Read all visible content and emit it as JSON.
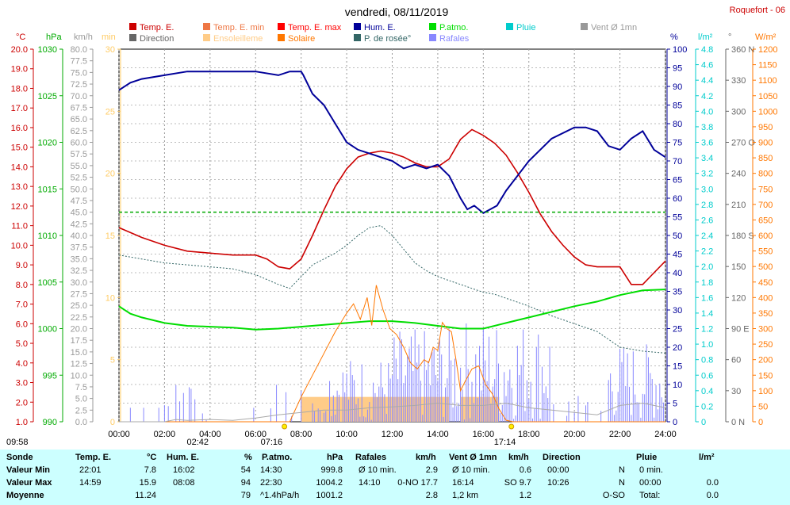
{
  "chart_data": {
    "type": "line",
    "title": "vendredi, 08/11/2019",
    "station": "Roquefort - 06",
    "x_ticks": [
      "00:00",
      "02:00",
      "04:00",
      "06:00",
      "08:00",
      "10:00",
      "12:00",
      "14:00",
      "16:00",
      "18:00",
      "20:00",
      "22:00",
      "24:00"
    ],
    "legend": [
      {
        "label": "Temp. E.",
        "color": "#cc0000"
      },
      {
        "label": "Temp. E. min",
        "color": "#ee7744"
      },
      {
        "label": "Temp. E. max",
        "color": "#ff0000"
      },
      {
        "label": "Hum. E.",
        "color": "#000099"
      },
      {
        "label": "P.atmo.",
        "color": "#00dd00"
      },
      {
        "label": "Pluie",
        "color": "#00cccc"
      },
      {
        "label": "Vent Ø 1mn",
        "color": "#999999"
      },
      {
        "label": "Direction",
        "color": "#666666"
      },
      {
        "label": "Ensoleilleme",
        "color": "#ffcc88"
      },
      {
        "label": "Solaire",
        "color": "#ff7700"
      },
      {
        "label": "P. de rosée°",
        "color": "#336666"
      },
      {
        "label": "Rafales",
        "color": "#8888ff"
      }
    ],
    "axes": {
      "temp": {
        "unit": "°C",
        "ticks": [
          "20.0",
          "19.0",
          "18.0",
          "17.0",
          "16.0",
          "15.0",
          "14.0",
          "13.0",
          "12.0",
          "11.0",
          "10.0",
          "9.0",
          "8.0",
          "7.0",
          "6.0",
          "5.0",
          "4.0",
          "3.0",
          "2.0",
          "1.0"
        ],
        "range": [
          1,
          20
        ],
        "color": "#cc0000"
      },
      "press": {
        "unit": "hPa",
        "ticks": [
          "1030",
          "1025",
          "1020",
          "1015",
          "1010",
          "1005",
          "1000",
          "995",
          "990"
        ],
        "range": [
          990,
          1030
        ],
        "color": "#00aa00"
      },
      "wind": {
        "unit": "km/h",
        "ticks": [
          "80.0",
          "77.5",
          "75.0",
          "72.5",
          "70.0",
          "67.5",
          "65.0",
          "62.5",
          "60.0",
          "57.5",
          "55.0",
          "52.5",
          "50.0",
          "47.5",
          "45.0",
          "42.5",
          "40.0",
          "37.5",
          "35.0",
          "32.5",
          "30.0",
          "27.5",
          "25.0",
          "22.5",
          "20.0",
          "17.5",
          "15.0",
          "12.5",
          "10.0",
          "7.5",
          "5.0",
          "2.5",
          "0.0"
        ],
        "range": [
          0,
          80
        ],
        "color": "#999999"
      },
      "sun": {
        "unit": "min",
        "ticks": [
          "30",
          "25",
          "20",
          "15",
          "10",
          "5",
          "0"
        ],
        "range": [
          0,
          30
        ],
        "color": "#ffcc66"
      },
      "hum": {
        "unit": "%",
        "ticks": [
          "100",
          "95",
          "90",
          "85",
          "80",
          "75",
          "70",
          "65",
          "60",
          "55",
          "50",
          "45",
          "40",
          "35",
          "30",
          "25",
          "20",
          "15",
          "10",
          "5",
          "0"
        ],
        "range": [
          0,
          100
        ],
        "color": "#000099"
      },
      "rain": {
        "unit": "l/m²",
        "ticks": [
          "4.8",
          "4.6",
          "4.4",
          "4.2",
          "4.0",
          "3.8",
          "3.6",
          "3.4",
          "3.2",
          "3.0",
          "2.8",
          "2.6",
          "2.4",
          "2.2",
          "2.0",
          "1.8",
          "1.6",
          "1.4",
          "1.2",
          "1.0",
          "0.8",
          "0.6",
          "0.4",
          "0.2",
          "0"
        ],
        "range": [
          0,
          5
        ],
        "color": "#00cccc"
      },
      "dir": {
        "unit": "°",
        "ticks": [
          "360 N",
          "330",
          "300",
          "270 O",
          "240",
          "210",
          "180 S",
          "150",
          "120",
          "90 E",
          "60",
          "30",
          "0 N"
        ],
        "range": [
          0,
          360
        ],
        "color": "#666666"
      },
      "solar": {
        "unit": "W/m²",
        "ticks": [
          "1200",
          "1150",
          "1100",
          "1050",
          "1000",
          "950",
          "900",
          "850",
          "800",
          "750",
          "700",
          "650",
          "600",
          "550",
          "500",
          "450",
          "400",
          "350",
          "300",
          "250",
          "200",
          "150",
          "100",
          "50",
          "0"
        ],
        "range": [
          0,
          1200
        ],
        "color": "#ff7700"
      }
    },
    "series": [
      {
        "name": "Temp. E.",
        "axis": "temp",
        "x": [
          0,
          1,
          2,
          3,
          4,
          5,
          6,
          6.5,
          7,
          7.5,
          8,
          8.5,
          9,
          9.5,
          10,
          10.5,
          11,
          11.5,
          12,
          12.5,
          13,
          13.5,
          14,
          14.5,
          15,
          15.5,
          16,
          16.5,
          17,
          17.5,
          18,
          18.5,
          19,
          19.5,
          20,
          20.5,
          21,
          21.5,
          22,
          22.5,
          23,
          23.5,
          24
        ],
        "y": [
          10.9,
          10.4,
          10.0,
          9.7,
          9.6,
          9.5,
          9.5,
          9.3,
          8.9,
          8.8,
          9.3,
          10.5,
          11.8,
          13.0,
          13.9,
          14.5,
          14.7,
          14.8,
          14.7,
          14.5,
          14.2,
          14.0,
          14.0,
          14.4,
          15.4,
          15.9,
          15.6,
          15.2,
          14.6,
          13.7,
          12.7,
          11.6,
          10.7,
          10.0,
          9.4,
          9.0,
          8.9,
          8.9,
          8.9,
          8.0,
          8.0,
          8.6,
          9.2
        ]
      },
      {
        "name": "P. de rosée°",
        "axis": "temp",
        "x": [
          0,
          1,
          2,
          3,
          4,
          5,
          6,
          7,
          7.5,
          8,
          8.5,
          9,
          9.5,
          10,
          10.5,
          11,
          11.5,
          12,
          12.5,
          13,
          13.5,
          14,
          14.5,
          15,
          15.5,
          16,
          16.5,
          17,
          17.5,
          18,
          19,
          20,
          21,
          22,
          23,
          24
        ],
        "y": [
          9.5,
          9.3,
          9.1,
          9.0,
          8.9,
          8.8,
          8.5,
          8.0,
          7.8,
          8.4,
          9.0,
          9.3,
          9.6,
          10.0,
          10.5,
          10.9,
          11.0,
          10.5,
          9.8,
          9.1,
          8.7,
          8.4,
          8.2,
          8.0,
          7.8,
          7.6,
          7.5,
          7.3,
          7.1,
          6.9,
          6.4,
          6.0,
          5.6,
          4.8,
          4.6,
          4.5
        ]
      },
      {
        "name": "Hum. E.",
        "axis": "hum",
        "x": [
          0,
          0.5,
          1,
          2,
          3,
          4,
          5,
          6,
          7,
          7.5,
          8,
          8.1,
          8.5,
          9,
          9.5,
          10,
          10.5,
          11,
          11.5,
          12,
          12.5,
          13,
          13.5,
          14,
          14.5,
          15,
          15.3,
          15.6,
          16,
          16.3,
          16.6,
          17,
          17.5,
          18,
          19,
          20,
          20.5,
          21,
          21.5,
          22,
          22.5,
          23,
          23.5,
          24
        ],
        "y": [
          89,
          91,
          92,
          93,
          94,
          94,
          94,
          94,
          93,
          94,
          94,
          93,
          88,
          85,
          80,
          75,
          73,
          72,
          71,
          70,
          68,
          69,
          68,
          69,
          66,
          60,
          57,
          58,
          56,
          57,
          58,
          62,
          66,
          70,
          76,
          79,
          79,
          78,
          74,
          73,
          76,
          78,
          73,
          71
        ]
      },
      {
        "name": "P.atmo.",
        "axis": "press",
        "x": [
          0,
          0.5,
          1,
          2,
          3,
          4,
          5,
          6,
          7,
          8,
          9,
          10,
          11,
          12,
          13,
          14,
          15,
          16,
          17,
          18,
          19,
          20,
          21,
          22,
          23,
          24
        ],
        "y": [
          1002.4,
          1001.6,
          1001.2,
          1000.6,
          1000.3,
          1000.2,
          1000.1,
          999.9,
          1000.0,
          1000.2,
          1000.4,
          1000.6,
          1000.8,
          1000.8,
          1000.6,
          1000.3,
          1000.0,
          1000.0,
          1000.6,
          1001.2,
          1001.8,
          1002.4,
          1002.9,
          1003.6,
          1004.1,
          1004.2
        ]
      },
      {
        "name": "Solaire",
        "axis": "solar",
        "x": [
          0,
          7.5,
          8,
          8.5,
          9,
          9.5,
          10,
          10.3,
          10.6,
          10.9,
          11.1,
          11.3,
          11.6,
          11.9,
          12.2,
          12.5,
          12.8,
          13.1,
          13.4,
          13.6,
          13.8,
          14.0,
          14.2,
          14.4,
          14.6,
          14.8,
          15.0,
          15.2,
          15.5,
          15.8,
          16.1,
          16.4,
          16.7,
          17.0,
          17.3,
          24
        ],
        "y": [
          0,
          0,
          80,
          150,
          220,
          290,
          350,
          380,
          330,
          400,
          310,
          440,
          360,
          300,
          280,
          240,
          190,
          170,
          200,
          190,
          240,
          230,
          320,
          300,
          290,
          200,
          100,
          130,
          170,
          180,
          120,
          90,
          40,
          5,
          0,
          0
        ]
      },
      {
        "name": "Vent Ø 1mn",
        "axis": "wind",
        "x": [
          0,
          2,
          2.5,
          3,
          4,
          5,
          6,
          7,
          8,
          9,
          10,
          11,
          12,
          13,
          14,
          15,
          16,
          17,
          18,
          19,
          20,
          21,
          22,
          23,
          24
        ],
        "y": [
          0,
          0,
          0.5,
          0.3,
          0.5,
          0.3,
          0.8,
          1.5,
          2.0,
          2.5,
          2.5,
          3.0,
          3.2,
          3.5,
          4.0,
          3.5,
          3.5,
          4.0,
          3.0,
          2.5,
          2.0,
          1.5,
          3.5,
          4.0,
          3.0
        ]
      }
    ],
    "sun_hours": {
      "label": "Ensoleilleme",
      "segments": [
        [
          8.0,
          10.3
        ],
        [
          10.3,
          12.0
        ],
        [
          12.0,
          14.5
        ],
        [
          15.0,
          16.7
        ]
      ],
      "minutes": 2
    },
    "gusts_peaks_kmh": [
      2.5,
      5,
      7.5,
      10,
      12.5,
      15,
      17.5,
      12.5,
      10
    ],
    "markers": {
      "sunrise": "07:16",
      "sunset": "17:14",
      "moonrise": "09:58",
      "moonset": "02:42"
    }
  },
  "table": {
    "headers": {
      "sonde": "Sonde",
      "temp": "Temp. E.",
      "temp_unit": "°C",
      "hum": "Hum. E.",
      "hum_unit": "%",
      "press": "P.atmo.",
      "press_unit": "hPa",
      "raf": "Rafales",
      "raf_unit": "km/h",
      "vent": "Vent Ø 1mn",
      "vent_unit": "km/h",
      "dir": "Direction",
      "pluie": "Pluie",
      "pluie_unit": "l/m²"
    },
    "rows": [
      {
        "label": "Valeur Min",
        "temp_t": "22:01",
        "temp_v": "7.8",
        "hum_t": "16:02",
        "hum_v": "54",
        "press_t": "14:30",
        "press_v": "999.8",
        "raf_t": "Ø 10 min.",
        "raf_v": "2.9",
        "vent_t": "Ø 10 min.",
        "vent_v": "0.6",
        "dir_t": "00:00",
        "dir_v": "N",
        "pluie_t": "0 min.",
        "pluie_v": ""
      },
      {
        "label": "Valeur Max",
        "temp_t": "14:59",
        "temp_v": "15.9",
        "hum_t": "08:08",
        "hum_v": "94",
        "press_t": "22:30",
        "press_v": "1004.2",
        "raf_t": "14:10",
        "raf_v": "0-NO 17.7",
        "vent_t": "16:14",
        "vent_v": "SO 9.7",
        "dir_t": "10:26",
        "dir_v": "N",
        "pluie_t": "00:00",
        "pluie_v": "0.0"
      },
      {
        "label": "Moyenne",
        "temp_t": "",
        "temp_v": "11.24",
        "hum_t": "",
        "hum_v": "79",
        "press_t": "^1.4hPa/h",
        "press_v": "1001.2",
        "raf_t": "",
        "raf_v": "2.8",
        "vent_t": "1,2 km",
        "vent_v": "1.2",
        "dir_t": "",
        "dir_v": "O-SO",
        "pluie_t": "Total:",
        "pluie_v": "0.0"
      }
    ]
  }
}
